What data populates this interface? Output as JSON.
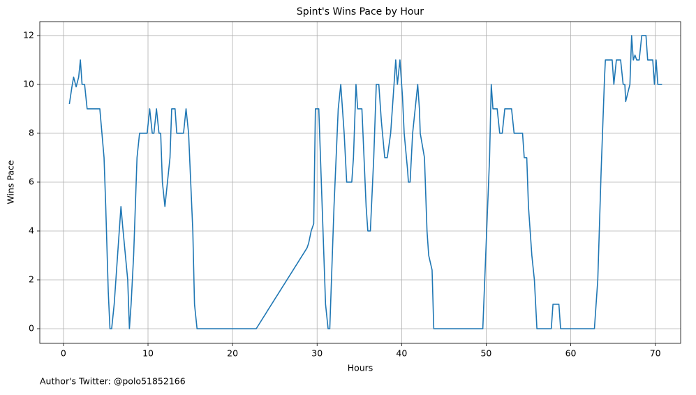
{
  "chart_data": {
    "type": "line",
    "title": "Spint's Wins Pace by Hour",
    "x_label": "Hours",
    "y_label": "Wins Pace",
    "footnote": "Author's Twitter: @polo51852166",
    "color": "#1f77b4",
    "grid": true,
    "xlim": [
      -2.8,
      73
    ],
    "ylim": [
      -0.6,
      12.57
    ],
    "xticks": [
      0,
      10,
      20,
      30,
      40,
      50,
      60,
      70
    ],
    "yticks": [
      0,
      2,
      4,
      6,
      8,
      10,
      12
    ],
    "x": [
      0.7,
      1.0,
      1.2,
      1.5,
      1.8,
      2.0,
      2.2,
      2.5,
      2.8,
      4.3,
      4.8,
      5.0,
      5.3,
      5.5,
      5.7,
      6.0,
      6.8,
      7.0,
      7.6,
      7.8,
      8.0,
      8.3,
      8.7,
      9.0,
      9.9,
      10.2,
      10.5,
      10.7,
      11.0,
      11.3,
      11.5,
      11.7,
      12.0,
      12.3,
      12.6,
      12.8,
      13.2,
      13.4,
      14.2,
      14.5,
      14.8,
      15.3,
      15.5,
      15.8,
      22.8,
      28.8,
      29.0,
      29.3,
      29.6,
      29.8,
      30.2,
      30.5,
      30.8,
      31.0,
      31.3,
      31.5,
      32.0,
      32.5,
      32.8,
      33.2,
      33.5,
      34.1,
      34.3,
      34.6,
      34.8,
      35.3,
      35.8,
      36.0,
      36.3,
      36.7,
      37.0,
      37.3,
      37.6,
      38.0,
      38.3,
      38.7,
      39.0,
      39.3,
      39.5,
      39.8,
      40.1,
      40.3,
      40.7,
      40.8,
      41.0,
      41.3,
      41.6,
      41.9,
      42.1,
      42.2,
      42.7,
      43.0,
      43.2,
      43.6,
      43.8,
      49.6,
      50.0,
      50.4,
      50.6,
      50.8,
      51.3,
      51.6,
      51.9,
      52.2,
      53.0,
      53.3,
      54.3,
      54.5,
      54.8,
      55.0,
      55.4,
      55.7,
      56.0,
      57.7,
      57.9,
      58.6,
      58.8,
      62.8,
      63.2,
      63.6,
      64.0,
      64.1,
      64.9,
      65.1,
      65.4,
      65.9,
      66.2,
      66.4,
      66.5,
      67.0,
      67.2,
      67.4,
      67.6,
      67.8,
      68.1,
      68.4,
      68.9,
      69.1,
      69.7,
      69.9,
      70.1,
      70.3,
      70.8
    ],
    "values": [
      9.2,
      9.9,
      10.3,
      9.9,
      10.3,
      11,
      10,
      10,
      9,
      9,
      7,
      5,
      1.5,
      0,
      0,
      1,
      5,
      4.2,
      2,
      0,
      1,
      3,
      7,
      8,
      8,
      9,
      8,
      8,
      9,
      8,
      8,
      6,
      5,
      6,
      7,
      9,
      9,
      8,
      8,
      9,
      8,
      4,
      1,
      0,
      0,
      3.3,
      3.5,
      4,
      4.3,
      9,
      9,
      6,
      3,
      1,
      0,
      0,
      5,
      9,
      10,
      8,
      6,
      6,
      7,
      10,
      9,
      9,
      5,
      4,
      4,
      7,
      10,
      10,
      8.5,
      7,
      7,
      8,
      9.5,
      11,
      10,
      11,
      9.5,
      8,
      6.5,
      6,
      6,
      8,
      9,
      10,
      9,
      8,
      7,
      4,
      3,
      2.4,
      0,
      0,
      3.5,
      7,
      10,
      9,
      9,
      8,
      8,
      9,
      9,
      8,
      8,
      7,
      7,
      5,
      3,
      2,
      0,
      0,
      1,
      1,
      0,
      0,
      2,
      6.5,
      10.3,
      11,
      11,
      10,
      11,
      11,
      10,
      10,
      9.3,
      10,
      12,
      11,
      11.2,
      11,
      11,
      12,
      12,
      11,
      11,
      10,
      11,
      10,
      10
    ]
  }
}
